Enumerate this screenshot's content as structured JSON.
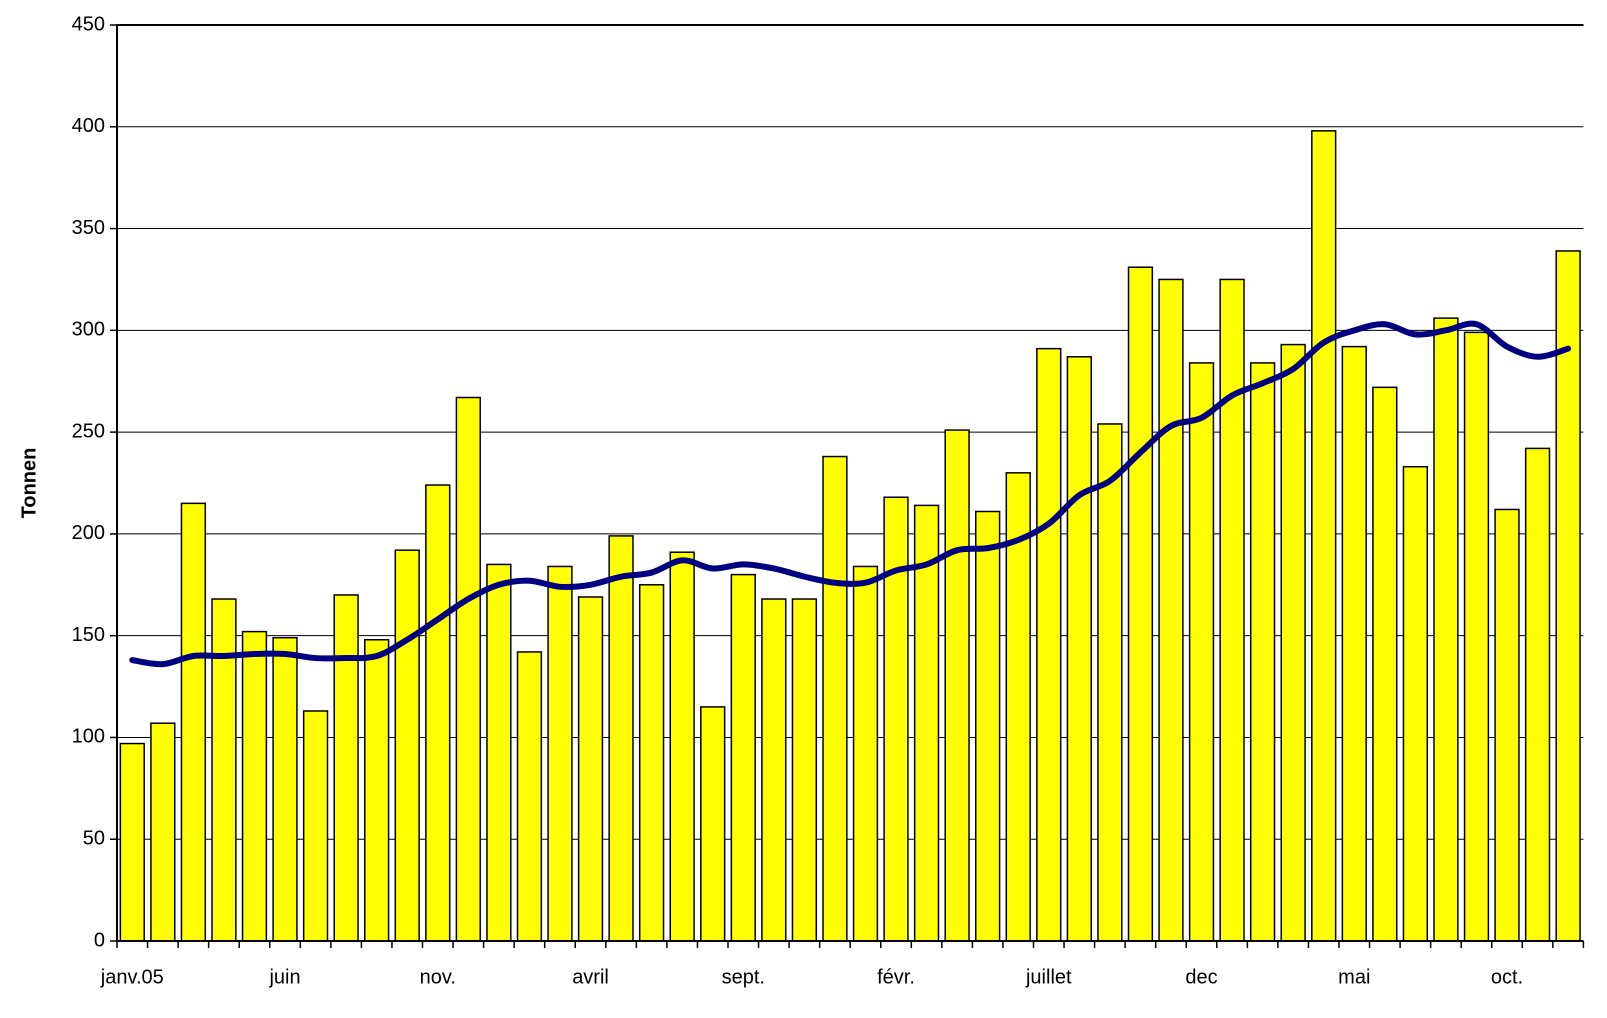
{
  "chart_data": {
    "type": "bar",
    "y_label": "Tonnen",
    "categories": [
      "janv.05",
      null,
      null,
      null,
      null,
      "juin",
      null,
      null,
      null,
      null,
      "nov.",
      null,
      null,
      null,
      null,
      "avril",
      null,
      null,
      null,
      null,
      "sept.",
      null,
      null,
      null,
      null,
      "févr.",
      null,
      null,
      null,
      null,
      "juillet",
      null,
      null,
      null,
      null,
      "dec",
      null,
      null,
      null,
      null,
      "mai",
      null,
      null,
      null,
      null,
      "oct.",
      null,
      null
    ],
    "series": [
      {
        "type": "bar",
        "color": "#ffff00",
        "values": [
          97,
          107,
          215,
          168,
          152,
          149,
          113,
          170,
          148,
          192,
          224,
          267,
          185,
          142,
          184,
          169,
          199,
          175,
          191,
          115,
          180,
          168,
          168,
          238,
          184,
          218,
          214,
          251,
          211,
          230,
          291,
          287,
          254,
          331,
          325,
          284,
          325,
          284,
          293,
          398,
          292,
          272,
          233,
          306,
          299,
          212,
          242,
          339
        ]
      },
      {
        "type": "line",
        "color": "#000080",
        "values": [
          138,
          136,
          140,
          140,
          141,
          141,
          139,
          139,
          140,
          148,
          158,
          168,
          175,
          177,
          174,
          175,
          179,
          181,
          187,
          183,
          185,
          183,
          179,
          176,
          176,
          182,
          185,
          192,
          193,
          197,
          205,
          219,
          226,
          240,
          253,
          257,
          268,
          274,
          281,
          294,
          300,
          303,
          298,
          300,
          303,
          292,
          287,
          291
        ]
      }
    ],
    "ylim": [
      0,
      450
    ],
    "yticks": [
      0,
      50,
      100,
      150,
      200,
      250,
      300,
      350,
      400,
      450
    ],
    "grid": true
  }
}
